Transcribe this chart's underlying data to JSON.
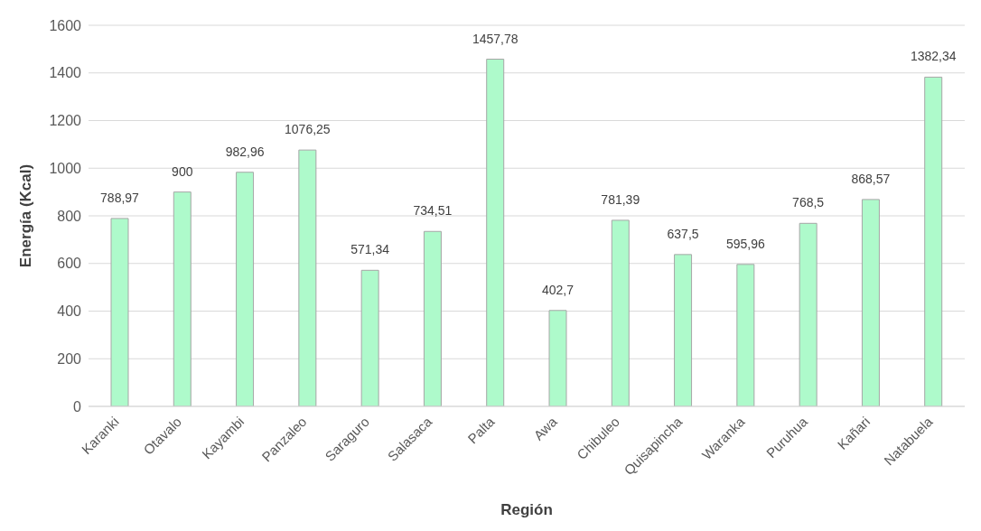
{
  "chart_data": {
    "type": "bar",
    "xlabel": "Región",
    "ylabel": "Energía (Kcal)",
    "categories": [
      "Karanki",
      "Otavalo",
      "Kayambi",
      "Panzaleo",
      "Saraguro",
      "Salasaca",
      "Palta",
      "Awa",
      "Chibuleo",
      "Quisapincha",
      "Waranka",
      "Puruhua",
      "Kañari",
      "Natabuela"
    ],
    "values": [
      788.97,
      900,
      982.96,
      1076.25,
      571.34,
      734.51,
      1457.78,
      402.7,
      781.39,
      637.5,
      595.96,
      768.5,
      868.57,
      1382.34
    ],
    "value_labels": [
      "788,97",
      "900",
      "982,96",
      "1076,25",
      "571,34",
      "734,51",
      "1457,78",
      "402,7",
      "781,39",
      "637,5",
      "595,96",
      "768,5",
      "868,57",
      "1382,34"
    ],
    "color": "#aefacb",
    "ylim": [
      0,
      1600
    ],
    "yticks": [
      0,
      200,
      400,
      600,
      800,
      1000,
      1200,
      1400,
      1600
    ],
    "grid": "y",
    "legend": false
  }
}
